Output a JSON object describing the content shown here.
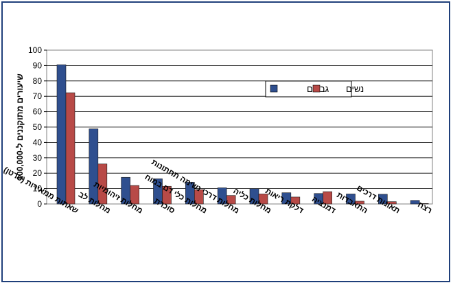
{
  "chart_data": {
    "type": "bar",
    "ylabel": "שיעורים מתוקננים ל-100,000",
    "ylim": [
      0,
      100
    ],
    "yticks": [
      0,
      10,
      20,
      30,
      40,
      50,
      60,
      70,
      80,
      90,
      100
    ],
    "grid": true,
    "legend_position": "top-right",
    "categories": [
      "שאתות ממאירות (סרטן)",
      "מחלות לב",
      "מחלות זיהומיות",
      "סוכרת",
      "מחלות כלי דם במוח",
      "מחלות דרכי נשימה תחתונות",
      "מחלות כליה",
      "דלקת ריאות",
      "דמנציה",
      "התאבדות",
      "תאונות דרכים",
      "רצח"
    ],
    "series": [
      {
        "name": "גברים",
        "color": "#2f4f8f",
        "values": [
          90.5,
          48.8,
          17.3,
          16.4,
          14.1,
          10.5,
          10.0,
          7.3,
          6.8,
          6.5,
          6.3,
          2.3
        ]
      },
      {
        "name": "נשים",
        "color": "#b84a47",
        "values": [
          72.3,
          26.0,
          12.0,
          11.5,
          9.3,
          5.5,
          6.5,
          4.5,
          8.0,
          1.8,
          1.5,
          0.3
        ]
      }
    ]
  }
}
